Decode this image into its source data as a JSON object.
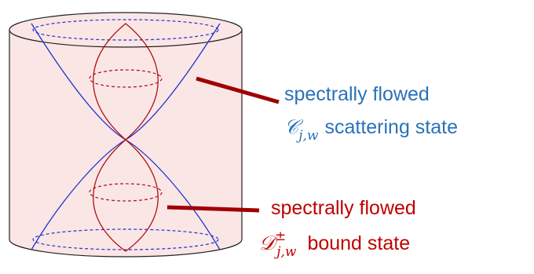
{
  "labels": [
    {
      "line1": "spectrally flowed",
      "symbol": "𝒞",
      "subscript": "j,w",
      "text": "scattering state"
    },
    {
      "line1": "spectrally flowed",
      "symbol": "𝒟",
      "superscript": "±",
      "subscript": "j,w",
      "text": "bound state"
    }
  ]
}
